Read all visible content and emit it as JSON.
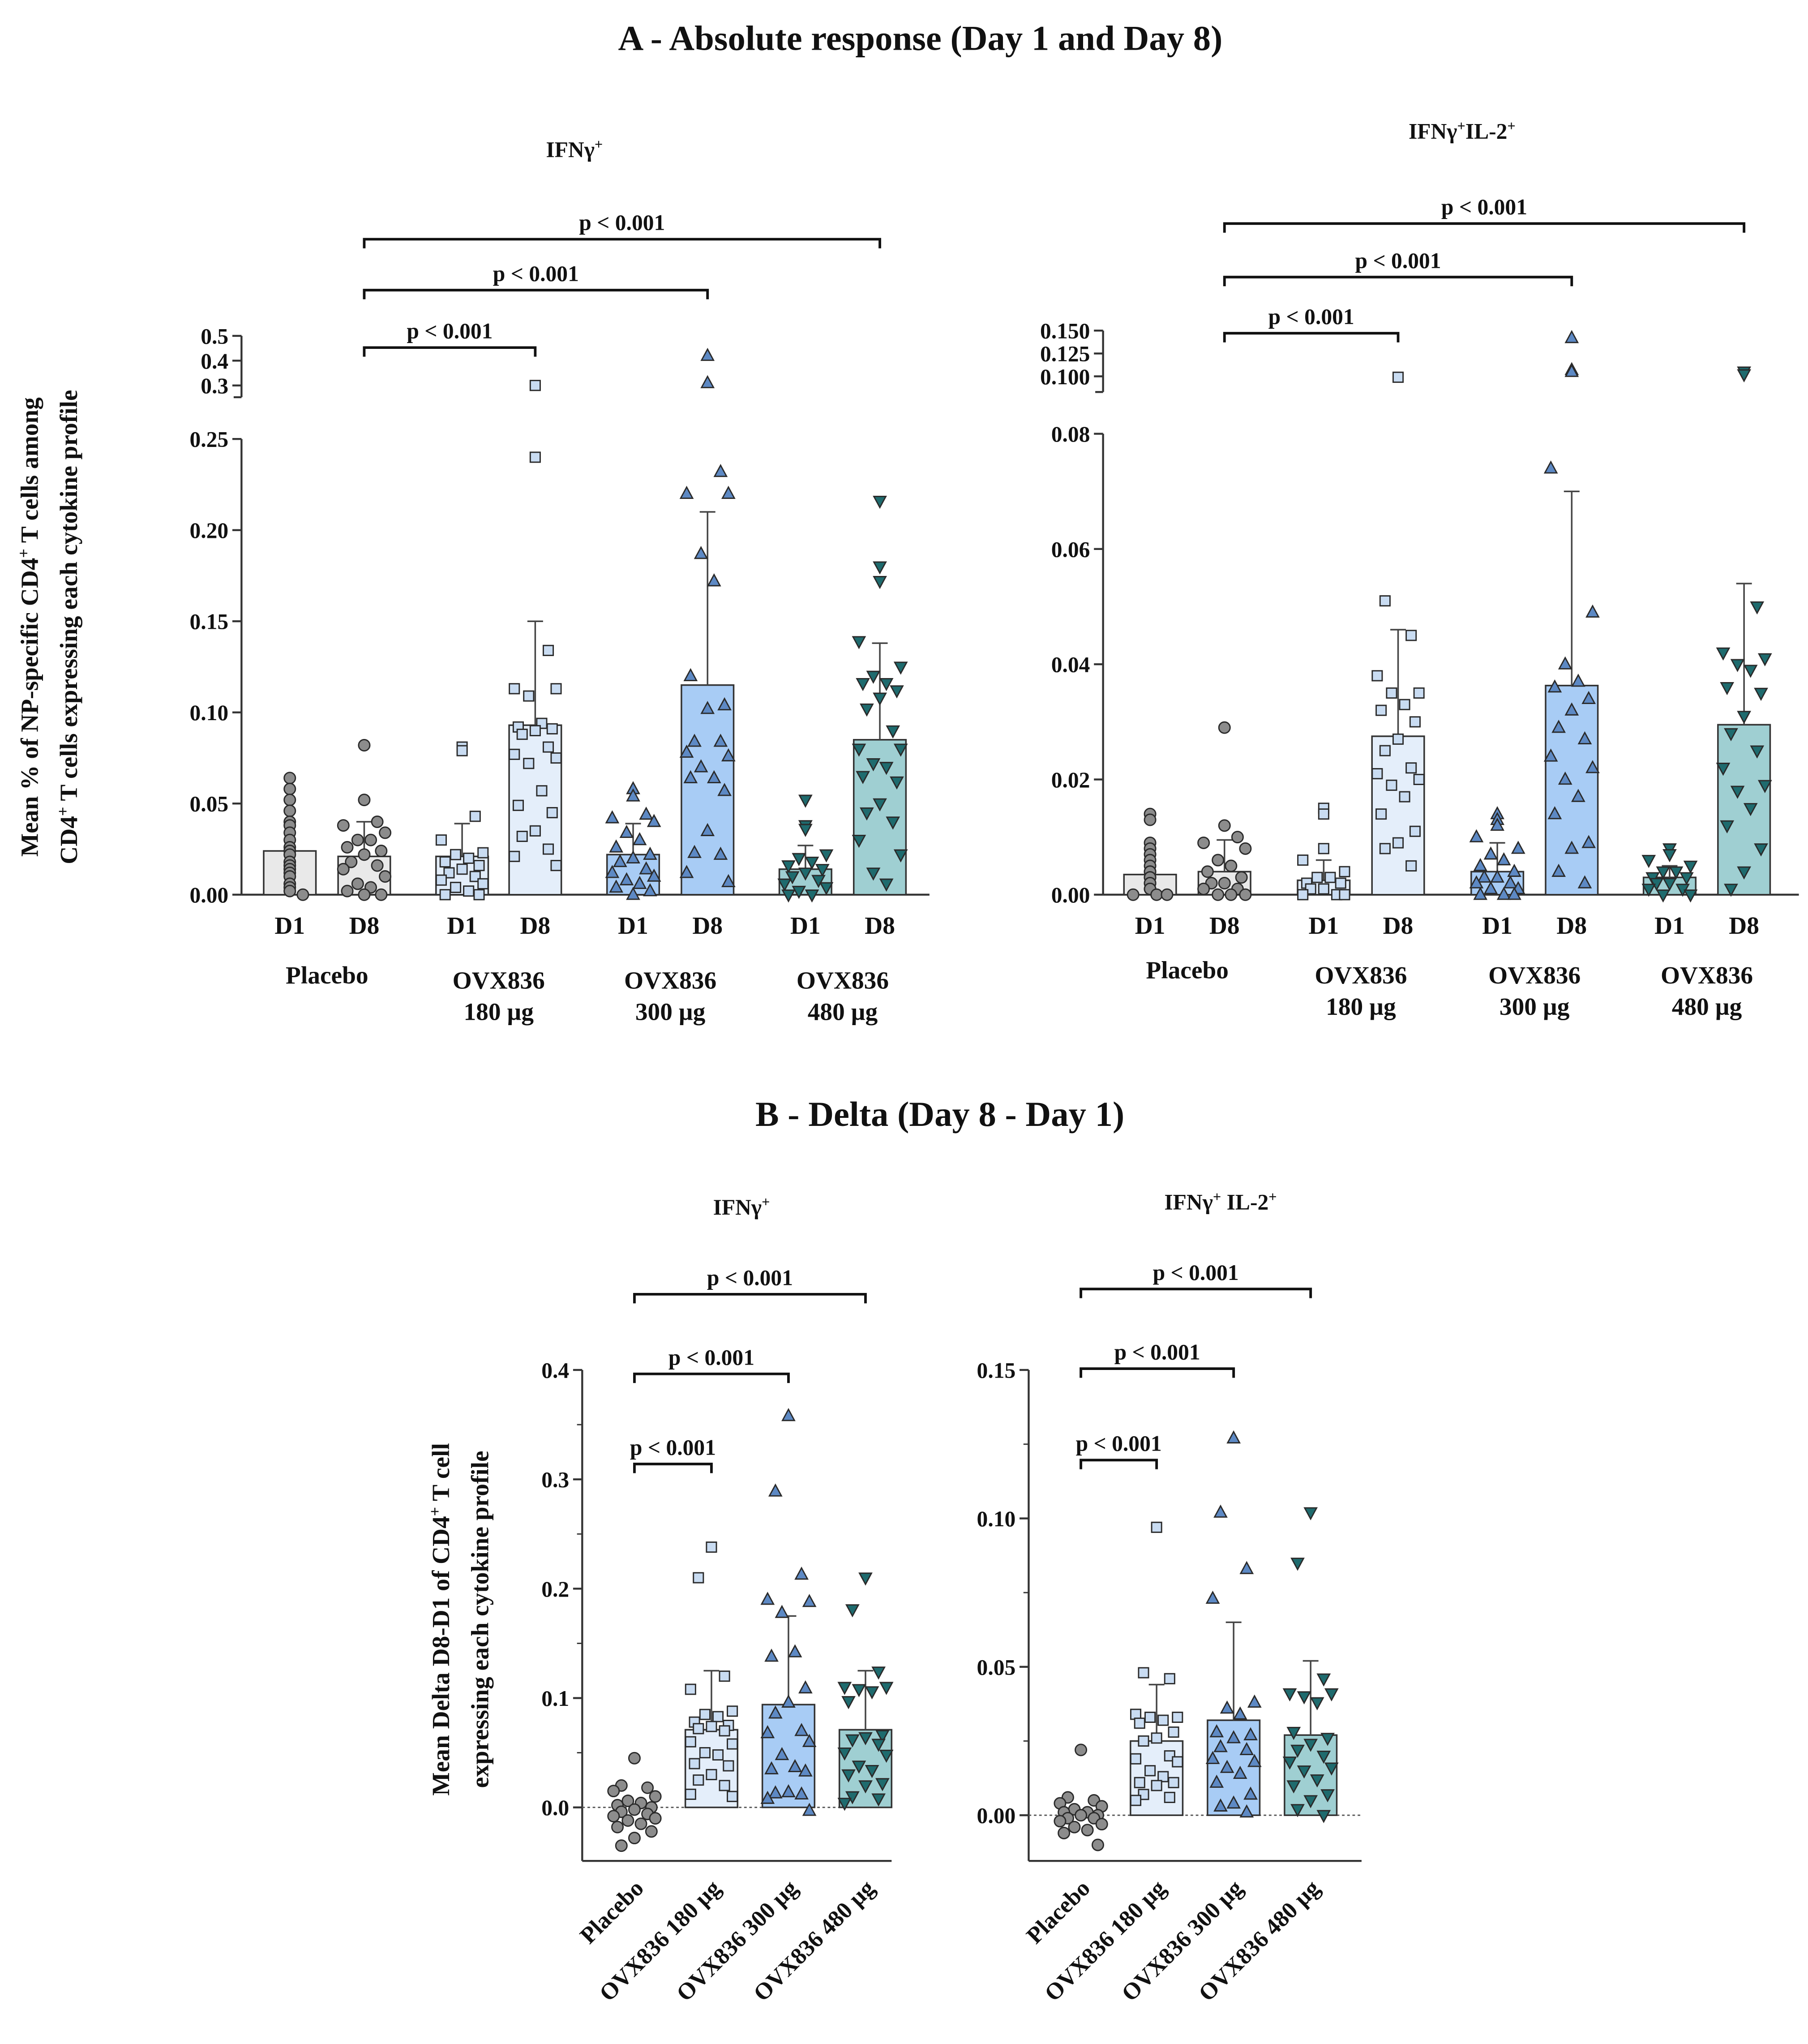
{
  "section_a_title": "A - Absolute response (Day 1 and Day 8)",
  "section_b_title": "B - Delta (Day 8 - Day 1)",
  "ylabel_a": [
    [
      {
        "t": "Mean % of NP-specific CD4"
      },
      {
        "t": "+",
        "sup": true
      },
      {
        "t": " T cells among"
      }
    ],
    [
      {
        "t": "CD4"
      },
      {
        "t": "+",
        "sup": true
      },
      {
        "t": " T cells expressing each cytokine profile"
      }
    ]
  ],
  "ylabel_b": [
    [
      {
        "t": "Mean Delta D8-D1 of CD4"
      },
      {
        "t": "+",
        "sup": true
      },
      {
        "t": " T cell"
      }
    ],
    [
      {
        "t": "expressing each cytokine profile"
      }
    ]
  ],
  "colors": {
    "placebo_bar": "#e9e9e9",
    "placebo_marker": "#8c8c8c",
    "d180_bar": "#e4eefa",
    "d180_marker": "#c9dcf2",
    "d300_bar": "#a8ccf5",
    "d300_marker": "#5d89c4",
    "d480_bar": "#9fcfd2",
    "d480_marker": "#1e6b6e",
    "axis": "#333333"
  },
  "chart_data": [
    {
      "id": "a_ifng",
      "type": "bar",
      "title": [
        {
          "t": "IFNγ"
        },
        {
          "t": "+",
          "sup": true
        }
      ],
      "categories": [
        "D1",
        "D8",
        "D1",
        "D8",
        "D1",
        "D8",
        "D1",
        "D8"
      ],
      "group_labels": [
        [
          "Placebo"
        ],
        [
          "OVX836",
          "180 µg"
        ],
        [
          "OVX836",
          "300 µg"
        ],
        [
          "OVX836",
          "480 µg"
        ]
      ],
      "ylim": [
        0,
        0.5
      ],
      "y_break": [
        0.255,
        0.28
      ],
      "yticks": [
        "0.00",
        "0.05",
        "0.10",
        "0.15",
        "0.20",
        "0.25",
        "0.3",
        "0.4",
        "0.5"
      ],
      "ytick_values": [
        0,
        0.05,
        0.1,
        0.15,
        0.2,
        0.25,
        0.3,
        0.4,
        0.5
      ],
      "series": [
        {
          "name": "Placebo D1",
          "group": "placebo",
          "marker": "circle",
          "mean": 0.024,
          "sd_top": null,
          "points": [
            0.064,
            0.058,
            0.052,
            0.046,
            0.04,
            0.038,
            0.034,
            0.03,
            0.026,
            0.024,
            0.024,
            0.022,
            0.018,
            0.016,
            0.014,
            0.012,
            0.01,
            0.006,
            0.004,
            0.002,
            0.0
          ]
        },
        {
          "name": "Placebo D8",
          "group": "placebo",
          "marker": "circle",
          "mean": 0.021,
          "sd_top": 0.04,
          "points": [
            0.082,
            0.052,
            0.04,
            0.038,
            0.034,
            0.03,
            0.03,
            0.026,
            0.024,
            0.022,
            0.018,
            0.016,
            0.014,
            0.01,
            0.006,
            0.004,
            0.002,
            0.0,
            0.0
          ]
        },
        {
          "name": "180 µg D1",
          "group": "d180",
          "marker": "square",
          "mean": 0.021,
          "sd_top": 0.039,
          "points": [
            0.081,
            0.079,
            0.043,
            0.03,
            0.023,
            0.022,
            0.02,
            0.018,
            0.016,
            0.014,
            0.012,
            0.01,
            0.008,
            0.006,
            0.004,
            0.002,
            0.0,
            0.0
          ]
        },
        {
          "name": "180 µg D8",
          "group": "d180",
          "marker": "square",
          "mean": 0.093,
          "sd_top": 0.15,
          "points": [
            0.3,
            0.24,
            0.134,
            0.113,
            0.113,
            0.109,
            0.094,
            0.092,
            0.091,
            0.09,
            0.088,
            0.081,
            0.077,
            0.075,
            0.072,
            0.057,
            0.049,
            0.045,
            0.035,
            0.032,
            0.025,
            0.021,
            0.016
          ]
        },
        {
          "name": "300 µg D1",
          "group": "d300",
          "marker": "triangle",
          "mean": 0.022,
          "sd_top": 0.039,
          "points": [
            0.058,
            0.054,
            0.044,
            0.042,
            0.04,
            0.034,
            0.03,
            0.026,
            0.022,
            0.02,
            0.018,
            0.014,
            0.012,
            0.01,
            0.008,
            0.006,
            0.004,
            0.002,
            0.0
          ]
        },
        {
          "name": "300 µg D8",
          "group": "d300",
          "marker": "triangle",
          "mean": 0.115,
          "sd_top": 0.21,
          "points": [
            0.42,
            0.31,
            0.232,
            0.22,
            0.22,
            0.187,
            0.172,
            0.12,
            0.104,
            0.102,
            0.084,
            0.084,
            0.078,
            0.076,
            0.07,
            0.064,
            0.064,
            0.057,
            0.035,
            0.023,
            0.022,
            0.012,
            0.007
          ]
        },
        {
          "name": "480 µg D1",
          "group": "d480",
          "marker": "triangle-down",
          "mean": 0.014,
          "sd_top": 0.027,
          "points": [
            0.052,
            0.038,
            0.038,
            0.036,
            0.022,
            0.02,
            0.018,
            0.016,
            0.014,
            0.012,
            0.01,
            0.008,
            0.006,
            0.004,
            0.002,
            0.0,
            0.0
          ]
        },
        {
          "name": "480 µg D8",
          "group": "d480",
          "marker": "triangle-down",
          "mean": 0.085,
          "sd_top": 0.138,
          "points": [
            0.216,
            0.18,
            0.172,
            0.139,
            0.125,
            0.12,
            0.116,
            0.116,
            0.112,
            0.108,
            0.102,
            0.09,
            0.08,
            0.08,
            0.072,
            0.07,
            0.065,
            0.062,
            0.05,
            0.045,
            0.04,
            0.03,
            0.022,
            0.012,
            0.006
          ]
        }
      ],
      "comparisons": [
        {
          "from": 1,
          "to": 3,
          "label": "p < 0.001"
        },
        {
          "from": 1,
          "to": 5,
          "label": "p < 0.001"
        },
        {
          "from": 1,
          "to": 7,
          "label": "p < 0.001"
        }
      ]
    },
    {
      "id": "a_ifng_il2",
      "type": "bar",
      "title": [
        {
          "t": "IFNγ"
        },
        {
          "t": "+",
          "sup": true
        },
        {
          "t": "IL-2"
        },
        {
          "t": "+",
          "sup": true
        }
      ],
      "categories": [
        "D1",
        "D8",
        "D1",
        "D8",
        "D1",
        "D8",
        "D1",
        "D8"
      ],
      "group_labels": [
        [
          "Placebo"
        ],
        [
          "OVX836",
          "180 µg"
        ],
        [
          "OVX836",
          "300 µg"
        ],
        [
          "OVX836",
          "480 µg"
        ]
      ],
      "ylim": [
        0,
        0.15
      ],
      "y_break": [
        0.08,
        0.097
      ],
      "yticks": [
        "0.00",
        "0.02",
        "0.04",
        "0.06",
        "0.08",
        "0.100",
        "0.125",
        "0.150"
      ],
      "ytick_values": [
        0,
        0.02,
        0.04,
        0.06,
        0.08,
        0.1,
        0.125,
        0.15
      ],
      "series": [
        {
          "name": "Placebo D1",
          "group": "placebo",
          "marker": "circle",
          "mean": 0.0035,
          "sd_top": null,
          "points": [
            0.014,
            0.013,
            0.009,
            0.008,
            0.007,
            0.006,
            0.005,
            0.004,
            0.004,
            0.003,
            0.003,
            0.002,
            0.002,
            0.001,
            0.001,
            0.0,
            0.0,
            0.0
          ]
        },
        {
          "name": "Placebo D8",
          "group": "placebo",
          "marker": "circle",
          "mean": 0.004,
          "sd_top": 0.0095,
          "points": [
            0.029,
            0.012,
            0.01,
            0.009,
            0.008,
            0.006,
            0.005,
            0.004,
            0.003,
            0.002,
            0.002,
            0.001,
            0.001,
            0.0,
            0.0,
            0.0
          ]
        },
        {
          "name": "180 µg D1",
          "group": "d180",
          "marker": "square",
          "mean": 0.0025,
          "sd_top": 0.006,
          "points": [
            0.015,
            0.014,
            0.008,
            0.006,
            0.004,
            0.003,
            0.003,
            0.002,
            0.002,
            0.001,
            0.001,
            0.0,
            0.0,
            0.0
          ]
        },
        {
          "name": "180 µg D8",
          "group": "d180",
          "marker": "square",
          "mean": 0.0275,
          "sd_top": 0.046,
          "points": [
            0.099,
            0.051,
            0.045,
            0.038,
            0.035,
            0.035,
            0.033,
            0.032,
            0.03,
            0.027,
            0.025,
            0.022,
            0.021,
            0.02,
            0.019,
            0.017,
            0.014,
            0.011,
            0.009,
            0.008,
            0.005
          ]
        },
        {
          "name": "300 µg D1",
          "group": "d300",
          "marker": "triangle",
          "mean": 0.004,
          "sd_top": 0.009,
          "points": [
            0.014,
            0.013,
            0.012,
            0.01,
            0.008,
            0.007,
            0.006,
            0.005,
            0.004,
            0.003,
            0.003,
            0.002,
            0.002,
            0.001,
            0.001,
            0.0,
            0.0,
            0.0
          ]
        },
        {
          "name": "300 µg D8",
          "group": "d300",
          "marker": "triangle",
          "mean": 0.0363,
          "sd_top": 0.07,
          "points": [
            0.142,
            0.107,
            0.105,
            0.074,
            0.049,
            0.04,
            0.037,
            0.036,
            0.034,
            0.032,
            0.029,
            0.027,
            0.024,
            0.022,
            0.02,
            0.017,
            0.014,
            0.009,
            0.008,
            0.004,
            0.002
          ]
        },
        {
          "name": "480 µg D1",
          "group": "d480",
          "marker": "triangle-down",
          "mean": 0.003,
          "sd_top": 0.005,
          "points": [
            0.008,
            0.008,
            0.007,
            0.006,
            0.005,
            0.004,
            0.004,
            0.003,
            0.003,
            0.002,
            0.002,
            0.001,
            0.001,
            0.0,
            0.0
          ]
        },
        {
          "name": "480 µg D8",
          "group": "d480",
          "marker": "triangle-down",
          "mean": 0.0295,
          "sd_top": 0.054,
          "points": [
            0.105,
            0.102,
            0.05,
            0.042,
            0.041,
            0.04,
            0.039,
            0.036,
            0.035,
            0.031,
            0.028,
            0.025,
            0.022,
            0.019,
            0.018,
            0.015,
            0.012,
            0.008,
            0.004,
            0.001
          ]
        }
      ],
      "comparisons": [
        {
          "from": 1,
          "to": 3,
          "label": "p < 0.001"
        },
        {
          "from": 1,
          "to": 5,
          "label": "p < 0.001"
        },
        {
          "from": 1,
          "to": 7,
          "label": "p < 0.001"
        }
      ]
    },
    {
      "id": "b_ifng",
      "type": "bar",
      "title": [
        {
          "t": "IFNγ"
        },
        {
          "t": "+",
          "sup": true
        }
      ],
      "categories": [
        "Placebo",
        "OVX836 180 µg",
        "OVX836 300 µg",
        "OVX836 480 µg"
      ],
      "ylim": [
        -0.05,
        0.4
      ],
      "yticks": [
        "0.0",
        "0.1",
        "0.2",
        "0.3",
        "0.4"
      ],
      "ytick_values": [
        0,
        0.1,
        0.2,
        0.3,
        0.4
      ],
      "series": [
        {
          "name": "Placebo",
          "group": "placebo",
          "marker": "circle",
          "mean": -0.004,
          "sd_top": null,
          "points": [
            0.045,
            0.02,
            0.018,
            0.015,
            0.01,
            0.006,
            0.004,
            0.002,
            0.0,
            -0.002,
            -0.004,
            -0.006,
            -0.008,
            -0.01,
            -0.012,
            -0.015,
            -0.018,
            -0.022,
            -0.028,
            -0.035
          ]
        },
        {
          "name": "OVX836 180 µg",
          "group": "d180",
          "marker": "square",
          "mean": 0.071,
          "sd_top": 0.125,
          "points": [
            0.238,
            0.21,
            0.12,
            0.108,
            0.088,
            0.085,
            0.083,
            0.078,
            0.075,
            0.074,
            0.072,
            0.07,
            0.06,
            0.058,
            0.05,
            0.048,
            0.04,
            0.038,
            0.03,
            0.025,
            0.02,
            0.012,
            0.01
          ]
        },
        {
          "name": "OVX836 300 µg",
          "group": "d300",
          "marker": "triangle",
          "mean": 0.094,
          "sd_top": 0.175,
          "points": [
            0.358,
            0.289,
            0.213,
            0.19,
            0.188,
            0.178,
            0.142,
            0.138,
            0.109,
            0.096,
            0.086,
            0.07,
            0.068,
            0.06,
            0.048,
            0.037,
            0.035,
            0.033,
            0.014,
            0.013,
            0.012,
            0.008,
            -0.003
          ]
        },
        {
          "name": "OVX836 480 µg",
          "group": "d480",
          "marker": "triangle-down",
          "mean": 0.071,
          "sd_top": 0.125,
          "points": [
            0.21,
            0.181,
            0.124,
            0.11,
            0.11,
            0.108,
            0.106,
            0.097,
            0.066,
            0.064,
            0.062,
            0.058,
            0.05,
            0.048,
            0.038,
            0.034,
            0.03,
            0.022,
            0.02,
            0.01,
            0.008,
            0.004
          ]
        }
      ],
      "comparisons": [
        {
          "from": 0,
          "to": 1,
          "label": "p < 0.001"
        },
        {
          "from": 0,
          "to": 2,
          "label": "p < 0.001"
        },
        {
          "from": 0,
          "to": 3,
          "label": "p < 0.001"
        }
      ]
    },
    {
      "id": "b_ifng_il2",
      "type": "bar",
      "title": [
        {
          "t": "IFNγ"
        },
        {
          "t": "+",
          "sup": true
        },
        {
          "t": " IL-2"
        },
        {
          "t": "+",
          "sup": true
        }
      ],
      "categories": [
        "Placebo",
        "OVX836 180 µg",
        "OVX836 300 µg",
        "OVX836 480 µg"
      ],
      "ylim": [
        -0.015,
        0.15
      ],
      "yticks": [
        "0.00",
        "0.05",
        "0.10",
        "0.15"
      ],
      "ytick_values": [
        0,
        0.05,
        0.1,
        0.15
      ],
      "series": [
        {
          "name": "Placebo",
          "group": "placebo",
          "marker": "circle",
          "mean": 0.0,
          "sd_top": null,
          "points": [
            0.022,
            0.006,
            0.005,
            0.004,
            0.003,
            0.002,
            0.001,
            0.001,
            0.0,
            0.0,
            -0.001,
            -0.001,
            -0.002,
            -0.003,
            -0.004,
            -0.005,
            -0.006,
            -0.01
          ]
        },
        {
          "name": "OVX836 180 µg",
          "group": "d180",
          "marker": "square",
          "mean": 0.025,
          "sd_top": 0.044,
          "points": [
            0.097,
            0.048,
            0.046,
            0.034,
            0.033,
            0.033,
            0.032,
            0.031,
            0.028,
            0.026,
            0.025,
            0.02,
            0.019,
            0.018,
            0.015,
            0.013,
            0.011,
            0.011,
            0.01,
            0.007,
            0.006,
            0.005
          ]
        },
        {
          "name": "OVX836 300 µg",
          "group": "d300",
          "marker": "triangle",
          "mean": 0.032,
          "sd_top": 0.065,
          "points": [
            0.127,
            0.102,
            0.083,
            0.073,
            0.038,
            0.036,
            0.034,
            0.028,
            0.027,
            0.026,
            0.023,
            0.022,
            0.019,
            0.018,
            0.016,
            0.014,
            0.011,
            0.007,
            0.004,
            0.003,
            0.001
          ]
        },
        {
          "name": "OVX836 480 µg",
          "group": "d480",
          "marker": "triangle-down",
          "mean": 0.027,
          "sd_top": 0.052,
          "points": [
            0.102,
            0.085,
            0.046,
            0.041,
            0.041,
            0.04,
            0.038,
            0.028,
            0.026,
            0.024,
            0.022,
            0.02,
            0.018,
            0.016,
            0.015,
            0.012,
            0.01,
            0.007,
            0.005,
            0.002,
            0.0
          ]
        }
      ],
      "comparisons": [
        {
          "from": 0,
          "to": 1,
          "label": "p < 0.001"
        },
        {
          "from": 0,
          "to": 2,
          "label": "p < 0.001"
        },
        {
          "from": 0,
          "to": 3,
          "label": "p < 0.001"
        }
      ]
    }
  ]
}
